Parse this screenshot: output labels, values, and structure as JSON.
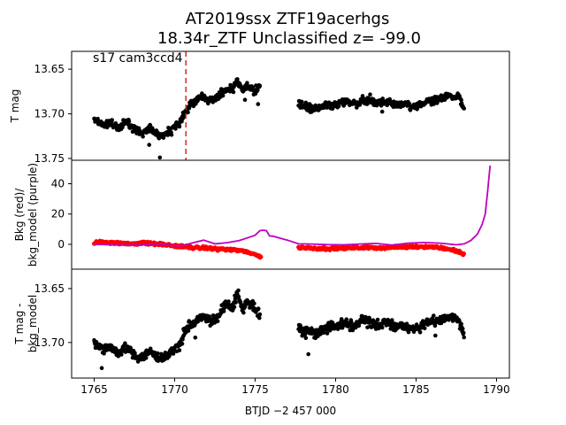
{
  "title_line1": "AT2019ssx  ZTF19acerhgs",
  "title_line2": "18.34r_ZTF Unclassified z= -99.0",
  "colors": {
    "points": "#000000",
    "bkg": "#ff0000",
    "model": "#bf00bf",
    "marker": "#d62728"
  },
  "chart_data": [
    {
      "type": "scatter",
      "panel": "top",
      "annotation": "s17 cam3ccd4",
      "ylabel": "T mag",
      "yticks": [
        "13.65",
        "13.70",
        "13.75"
      ],
      "ylim": [
        13.752,
        13.63
      ],
      "xlim": [
        1763.6,
        1790.8
      ],
      "vline_x": 1770.7,
      "series": [
        {
          "values_x": [
            1765.0,
            1765.5,
            1766.0,
            1766.5,
            1767.0,
            1767.5,
            1768.0,
            1768.5,
            1769.0,
            1769.5,
            1770.0,
            1770.3,
            1770.6,
            1770.9,
            1771.2,
            1771.5,
            1771.8,
            1772.1,
            1772.4,
            1772.7,
            1773.0,
            1773.3,
            1773.6,
            1773.9,
            1774.2,
            1774.5,
            1774.8,
            1775.1,
            1775.3
          ],
          "values_y": [
            13.705,
            13.712,
            13.71,
            13.716,
            13.708,
            13.718,
            13.722,
            13.716,
            13.724,
            13.722,
            13.715,
            13.712,
            13.7,
            13.692,
            13.686,
            13.682,
            13.68,
            13.686,
            13.684,
            13.68,
            13.676,
            13.672,
            13.674,
            13.662,
            13.674,
            13.668,
            13.672,
            13.676,
            13.668
          ]
        },
        {
          "values_x": [
            1777.7,
            1778.2,
            1778.7,
            1779.2,
            1779.7,
            1780.2,
            1780.7,
            1781.2,
            1781.7,
            1782.2,
            1782.7,
            1783.2,
            1783.7,
            1784.2,
            1784.7,
            1785.2,
            1785.7,
            1786.2,
            1786.7,
            1787.2,
            1787.7,
            1788.0
          ],
          "values_y": [
            13.69,
            13.692,
            13.695,
            13.692,
            13.69,
            13.688,
            13.686,
            13.69,
            13.684,
            13.686,
            13.688,
            13.686,
            13.69,
            13.688,
            13.692,
            13.69,
            13.686,
            13.684,
            13.682,
            13.68,
            13.682,
            13.695
          ]
        }
      ]
    },
    {
      "type": "line",
      "panel": "middle",
      "ylabel": "Bkg (red)/\nbkg_model (purple)",
      "yticks": [
        "0",
        "20",
        "40"
      ],
      "ylim": [
        -16.4,
        55.5
      ],
      "xlim": [
        1763.6,
        1790.8
      ],
      "series": [
        {
          "values_x": [
            1765.0,
            1765.5,
            1766.0,
            1766.5,
            1767.0,
            1767.5,
            1768.0,
            1768.5,
            1769.0,
            1769.5,
            1770.0,
            1770.5,
            1771.0,
            1771.5,
            1772.0,
            1772.5,
            1773.0,
            1773.5,
            1774.0,
            1774.5,
            1775.0,
            1775.4,
            1777.7,
            1778.2,
            1778.7,
            1779.2,
            1779.7,
            1780.2,
            1780.7,
            1781.2,
            1781.7,
            1782.2,
            1782.7,
            1783.2,
            1783.7,
            1784.2,
            1784.7,
            1785.2,
            1785.7,
            1786.2,
            1786.7,
            1787.2,
            1787.7,
            1788.0
          ],
          "values_y": [
            1.0,
            1.5,
            1.2,
            0.8,
            0.3,
            0.6,
            0.9,
            0.5,
            0.2,
            -0.4,
            -1.0,
            -1.6,
            -2.0,
            -2.4,
            -2.6,
            -2.9,
            -3.2,
            -3.6,
            -4.1,
            -5.0,
            -6.5,
            -9.0,
            -2.0,
            -2.4,
            -2.6,
            -2.7,
            -2.8,
            -2.6,
            -2.4,
            -2.3,
            -2.2,
            -2.1,
            -2.3,
            -2.1,
            -2.0,
            -1.8,
            -1.6,
            -1.5,
            -1.6,
            -1.9,
            -2.6,
            -3.6,
            -5.0,
            -7.0
          ]
        },
        {
          "values_x": [
            1765.0,
            1766.0,
            1767.0,
            1768.0,
            1769.0,
            1770.0,
            1770.5,
            1771.0,
            1771.8,
            1772.5,
            1773.2,
            1774.0,
            1774.6,
            1775.0,
            1775.3,
            1775.5,
            1775.7,
            1775.9,
            1776.1,
            1776.5,
            1777.0,
            1777.7,
            1778.5,
            1779.5,
            1780.5,
            1781.5,
            1782.5,
            1783.5,
            1784.5,
            1785.5,
            1786.5,
            1787.5,
            1788.0,
            1788.4,
            1788.8,
            1789.1,
            1789.3,
            1789.45,
            1789.6
          ],
          "values_y": [
            0.0,
            -0.3,
            -0.6,
            -0.4,
            0.3,
            -1.0,
            -0.8,
            0.6,
            2.8,
            0.3,
            1.0,
            2.5,
            4.5,
            6.0,
            9.0,
            9.3,
            9.0,
            5.5,
            5.4,
            4.2,
            2.8,
            0.3,
            0.2,
            -0.2,
            -0.3,
            0.2,
            0.6,
            -0.5,
            0.8,
            1.2,
            0.8,
            -0.3,
            0.3,
            2.5,
            6.5,
            13.0,
            20.0,
            35.0,
            52.0
          ]
        }
      ]
    },
    {
      "type": "scatter",
      "panel": "bottom",
      "ylabel": "T mag -\nbkg_model",
      "yticks": [
        "13.65",
        "13.70"
      ],
      "ylim": [
        13.733,
        13.632
      ],
      "xlim": [
        1763.6,
        1790.8
      ],
      "xticks": [
        "1765",
        "1770",
        "1775",
        "1780",
        "1785",
        "1790"
      ],
      "xlabel": "BTJD −2 457 000",
      "series": [
        {
          "values_x": [
            1765.0,
            1765.5,
            1766.0,
            1766.5,
            1767.0,
            1767.5,
            1768.0,
            1768.5,
            1769.0,
            1769.5,
            1770.0,
            1770.3,
            1770.6,
            1770.9,
            1771.2,
            1771.5,
            1771.8,
            1772.1,
            1772.4,
            1772.7,
            1773.0,
            1773.3,
            1773.6,
            1773.9,
            1774.2,
            1774.5,
            1774.8,
            1775.1,
            1775.3
          ],
          "values_y": [
            13.7,
            13.706,
            13.704,
            13.71,
            13.704,
            13.712,
            13.714,
            13.708,
            13.716,
            13.712,
            13.706,
            13.702,
            13.692,
            13.684,
            13.682,
            13.678,
            13.676,
            13.68,
            13.68,
            13.676,
            13.668,
            13.664,
            13.668,
            13.654,
            13.668,
            13.662,
            13.666,
            13.67,
            13.676
          ]
        },
        {
          "values_x": [
            1777.7,
            1778.2,
            1778.7,
            1779.2,
            1779.7,
            1780.2,
            1780.7,
            1781.2,
            1781.7,
            1782.2,
            1782.7,
            1783.2,
            1783.7,
            1784.2,
            1784.7,
            1785.2,
            1785.7,
            1786.2,
            1786.7,
            1787.2,
            1787.7,
            1788.0
          ],
          "values_y": [
            13.688,
            13.69,
            13.692,
            13.688,
            13.686,
            13.684,
            13.682,
            13.686,
            13.68,
            13.682,
            13.684,
            13.682,
            13.686,
            13.684,
            13.688,
            13.686,
            13.682,
            13.68,
            13.678,
            13.676,
            13.68,
            13.692
          ]
        }
      ]
    }
  ]
}
